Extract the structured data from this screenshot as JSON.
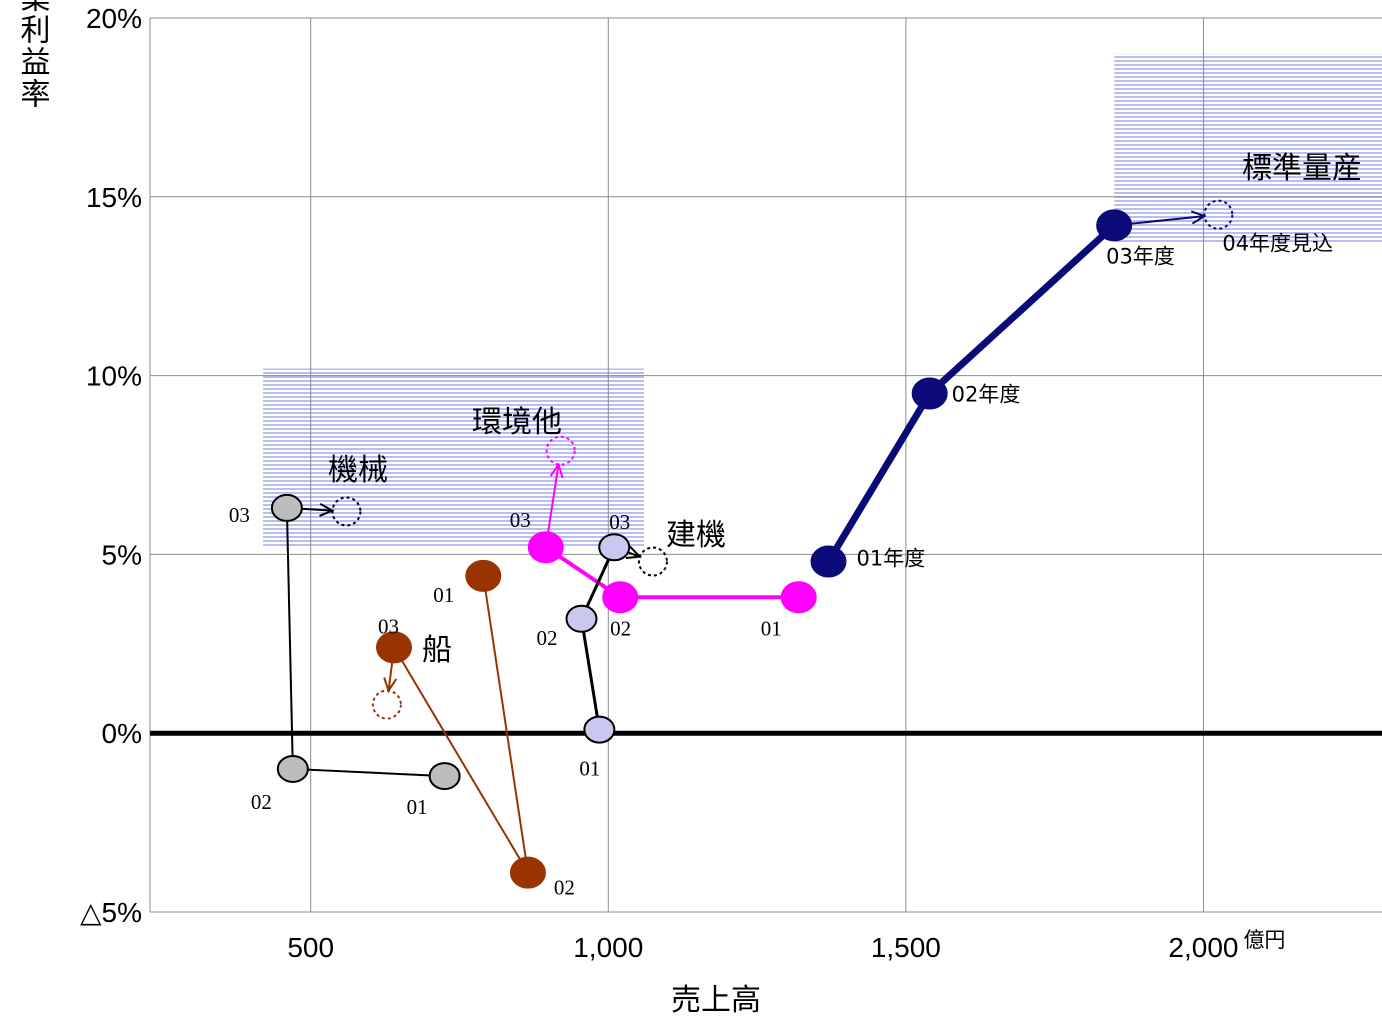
{
  "chart_data": {
    "type": "scatter",
    "xlabel": "売上高",
    "ylabel": "営業利益率",
    "xlim": [
      230,
      2300
    ],
    "ylim": [
      -5,
      20
    ],
    "x_ticks": [
      {
        "value": 500,
        "label": "500"
      },
      {
        "value": 1000,
        "label": "1,000"
      },
      {
        "value": 1500,
        "label": "1,500"
      },
      {
        "value": 2000,
        "label": "2,000"
      }
    ],
    "x_unit": "億円",
    "y_ticks": [
      {
        "value": 20,
        "label": "20%"
      },
      {
        "value": 15,
        "label": "15%"
      },
      {
        "value": 10,
        "label": "10%"
      },
      {
        "value": 5,
        "label": "5%"
      },
      {
        "value": 0,
        "label": "0%"
      },
      {
        "value": -5,
        "label": "△5%"
      }
    ],
    "grid": true,
    "highlight_regions": [
      {
        "x": [
          1850,
          2300
        ],
        "y": [
          13.7,
          19
        ]
      },
      {
        "x": [
          420,
          1060
        ],
        "y": [
          5.2,
          10.2
        ]
      }
    ],
    "series": [
      {
        "name": "標準量産",
        "color": "#0a0a78",
        "fill": "#0a0a78",
        "line_width": 7,
        "points": [
          {
            "x": 1370,
            "y": 4.8,
            "label": "01年度"
          },
          {
            "x": 1540,
            "y": 9.5,
            "label": "02年度"
          },
          {
            "x": 1850,
            "y": 14.2,
            "label": "03年度"
          }
        ],
        "forecast": {
          "x": 2025,
          "y": 14.5,
          "label": "04年度見込"
        }
      },
      {
        "name": "環境他",
        "color": "#ff00ff",
        "fill": "#ff00ff",
        "line_width": 4,
        "points": [
          {
            "x": 1320,
            "y": 3.8,
            "label": "01"
          },
          {
            "x": 1020,
            "y": 3.8,
            "label": "02"
          },
          {
            "x": 895,
            "y": 5.2,
            "label": "03"
          }
        ],
        "forecast": {
          "x": 920,
          "y": 7.9,
          "label": ""
        }
      },
      {
        "name": "建機",
        "color": "#000000",
        "fill": "#c8c8f0",
        "line_width": 3,
        "points": [
          {
            "x": 985,
            "y": 0.1,
            "label": "01"
          },
          {
            "x": 955,
            "y": 3.2,
            "label": "02"
          },
          {
            "x": 1010,
            "y": 5.2,
            "label": "03"
          }
        ],
        "forecast": {
          "x": 1075,
          "y": 4.8,
          "label": ""
        }
      },
      {
        "name": "機械",
        "color": "#000000",
        "fill": "#bdbdbd",
        "line_width": 2,
        "points": [
          {
            "x": 725,
            "y": -1.2,
            "label": "01"
          },
          {
            "x": 470,
            "y": -1.0,
            "label": "02"
          },
          {
            "x": 460,
            "y": 6.3,
            "label": "03"
          }
        ],
        "forecast": {
          "x": 560,
          "y": 6.2,
          "label": ""
        }
      },
      {
        "name": "船",
        "color": "#993300",
        "fill": "#993300",
        "line_width": 2,
        "points": [
          {
            "x": 790,
            "y": 4.4,
            "label": "01"
          },
          {
            "x": 865,
            "y": -3.9,
            "label": "02"
          },
          {
            "x": 640,
            "y": 2.4,
            "label": "03"
          }
        ],
        "forecast": {
          "x": 628,
          "y": 0.8,
          "label": ""
        }
      }
    ],
    "segment_labels": [
      {
        "text": "標準量産",
        "series": "標準量産"
      },
      {
        "text": "環境他",
        "series": "環境他"
      },
      {
        "text": "建機",
        "series": "建機"
      },
      {
        "text": "機械",
        "series": "機械"
      },
      {
        "text": "船",
        "series": "船"
      }
    ]
  }
}
